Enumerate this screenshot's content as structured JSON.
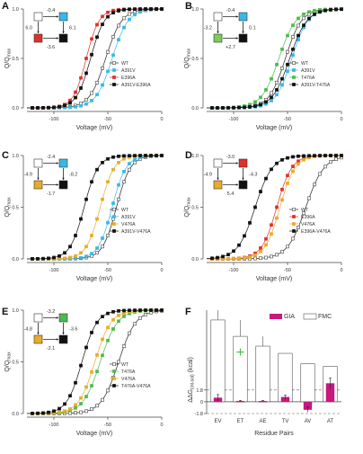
{
  "chart_data": [
    {
      "panel": "A",
      "type": "line",
      "xlabel": "Voltage (mV)",
      "ylabel": "Q/Q",
      "ylabel_sub": "max",
      "xticks": [
        -100,
        -50,
        0
      ],
      "yticks": [
        0.0,
        0.5,
        1.0
      ],
      "xlim": [
        -125,
        0
      ],
      "ylim": [
        0,
        1
      ],
      "legend_position": "lower-right",
      "series": [
        {
          "name": "WT",
          "marker": "open-square",
          "color": "#222222",
          "v_half": -52,
          "slope": 7.5
        },
        {
          "name": "A391V",
          "marker": "filled-square",
          "color": "#39b8e6",
          "v_half": -46,
          "slope": 7.5
        },
        {
          "name": "E396A",
          "marker": "filled-square",
          "color": "#e0302a",
          "v_half": -70,
          "slope": 6.0
        },
        {
          "name": "A391V-E396A",
          "marker": "filled-square",
          "color": "#111111",
          "v_half": -66,
          "slope": 6.5
        }
      ],
      "cycle": {
        "top_edge": "-0.4",
        "bottom_edge": "-3.6",
        "left_edge": "6.0",
        "right_edge": "6.1",
        "colors": {
          "tl": "#ffffff",
          "tr": "#39b8e6",
          "bl": "#e0302a",
          "br": "#111111"
        }
      }
    },
    {
      "panel": "B",
      "type": "line",
      "xlabel": "Voltage (mV)",
      "ylabel": "Q/Q",
      "ylabel_sub": "max",
      "xticks": [
        -100,
        -50,
        0
      ],
      "yticks": [
        0.0,
        0.5,
        1.0
      ],
      "xlim": [
        -125,
        0
      ],
      "ylim": [
        0,
        1
      ],
      "legend_position": "lower-right",
      "series": [
        {
          "name": "WT",
          "marker": "open-square",
          "color": "#222222",
          "v_half": -52,
          "slope": 7.5
        },
        {
          "name": "A391V",
          "marker": "filled-square",
          "color": "#39b8e6",
          "v_half": -46,
          "slope": 7.5
        },
        {
          "name": "T476A",
          "marker": "filled-square",
          "color": "#4dbb4d",
          "v_half": -58,
          "slope": 8.0
        },
        {
          "name": "A391V-T476A",
          "marker": "filled-square",
          "color": "#111111",
          "v_half": -48,
          "slope": 8.0
        }
      ],
      "cycle": {
        "top_edge": "-0.4",
        "bottom_edge": "+2.7",
        "left_edge": "-3.2",
        "right_edge": "0.1",
        "colors": {
          "tl": "#ffffff",
          "tr": "#39b8e6",
          "bl": "#7ecb5b",
          "br": "#111111"
        }
      }
    },
    {
      "panel": "C",
      "type": "line",
      "xlabel": "Voltage (mV)",
      "ylabel": "Q/Q",
      "ylabel_sub": "max",
      "xticks": [
        -100,
        -50,
        0
      ],
      "yticks": [
        0.0,
        0.5,
        1.0
      ],
      "xlim": [
        -125,
        0
      ],
      "ylim": [
        0,
        1
      ],
      "legend_position": "lower-right",
      "series": [
        {
          "name": "WT",
          "marker": "open-square",
          "color": "#222222",
          "v_half": -42,
          "slope": 6.5
        },
        {
          "name": "A391V",
          "marker": "filled-square",
          "color": "#39b8e6",
          "v_half": -46,
          "slope": 6.5
        },
        {
          "name": "V476A",
          "marker": "filled-square",
          "color": "#e8ac28",
          "v_half": -57,
          "slope": 6.5
        },
        {
          "name": "A391V-V476A",
          "marker": "filled-square",
          "color": "#111111",
          "v_half": -72,
          "slope": 6.5
        }
      ],
      "cycle": {
        "top_edge": "-2.4",
        "bottom_edge": "-1.7",
        "left_edge": "-4.9",
        "right_edge": "-8.2",
        "colors": {
          "tl": "#ffffff",
          "tr": "#39b8e6",
          "bl": "#e8ac28",
          "br": "#111111"
        }
      }
    },
    {
      "panel": "D",
      "type": "line",
      "xlabel": "Voltage (mV)",
      "ylabel": "Q/Q",
      "ylabel_sub": "max",
      "xticks": [
        -100,
        -50,
        0
      ],
      "yticks": [
        0.0,
        0.5,
        1.0
      ],
      "xlim": [
        -125,
        0
      ],
      "ylim": [
        0,
        1
      ],
      "legend_position": "lower-right",
      "series": [
        {
          "name": "WT",
          "marker": "open-square",
          "color": "#222222",
          "v_half": -33,
          "slope": 8.5
        },
        {
          "name": "E396A",
          "marker": "filled-square",
          "color": "#e0302a",
          "v_half": -60,
          "slope": 7.0
        },
        {
          "name": "V476A",
          "marker": "filled-square",
          "color": "#e8ac28",
          "v_half": -57,
          "slope": 7.0
        },
        {
          "name": "E396A-V476A",
          "marker": "filled-square",
          "color": "#111111",
          "v_half": -80,
          "slope": 8.0
        }
      ],
      "cycle": {
        "top_edge": "-3.0",
        "bottom_edge": "5.4",
        "left_edge": "-4.9",
        "right_edge": "-4.3",
        "colors": {
          "tl": "#ffffff",
          "tr": "#e0302a",
          "bl": "#e8ac28",
          "br": "#111111"
        }
      }
    },
    {
      "panel": "E",
      "type": "line",
      "xlabel": "Voltage (mV)",
      "ylabel": "Q/Q",
      "ylabel_sub": "max",
      "xticks": [
        -100,
        -50,
        0
      ],
      "yticks": [
        0.0,
        0.5,
        1.0
      ],
      "xlim": [
        -125,
        0
      ],
      "ylim": [
        0,
        1
      ],
      "legend_position": "lower-right",
      "series": [
        {
          "name": "WT",
          "marker": "open-square",
          "color": "#222222",
          "v_half": -40,
          "slope": 8.0
        },
        {
          "name": "T476A",
          "marker": "filled-square",
          "color": "#4dbb4d",
          "v_half": -57,
          "slope": 8.0
        },
        {
          "name": "V476A",
          "marker": "filled-square",
          "color": "#e8ac28",
          "v_half": -62,
          "slope": 7.5
        },
        {
          "name": "T476A-V476A",
          "marker": "filled-square",
          "color": "#111111",
          "v_half": -74,
          "slope": 7.0
        }
      ],
      "cycle": {
        "top_edge": "-3.2",
        "bottom_edge": "-2.1",
        "left_edge": "-4.8",
        "right_edge": "-3.6",
        "colors": {
          "tl": "#ffffff",
          "tr": "#4dbb4d",
          "bl": "#e8ac28",
          "br": "#111111"
        }
      }
    },
    {
      "panel": "F",
      "type": "bar",
      "xlabel": "Residue Pairs",
      "ylabel": "ΔΔG",
      "ylabel_sub": "(int-sol)",
      "ylabel_unit": "(kcal)",
      "categories": [
        "EV",
        "ET",
        "AE",
        "TV",
        "AV",
        "AT"
      ],
      "yticks": [
        "-1.8",
        "0",
        "1.8"
      ],
      "ylim": [
        -1.8,
        14
      ],
      "dashed_lines": [
        1.8,
        -1.8
      ],
      "legend_position": "top-right",
      "series": [
        {
          "name": "GIA",
          "color": "#c8177e",
          "values": [
            0.6,
            0.1,
            0.1,
            0.7,
            -1.2,
            2.8
          ],
          "errors": [
            0.5,
            0.1,
            0.1,
            0.3,
            0.4,
            0.8
          ]
        },
        {
          "name": "FMC",
          "color": "#ffffff",
          "values": [
            12.5,
            10.0,
            8.5,
            7.4,
            5.8,
            5.4
          ],
          "errors": [
            2.0,
            2.5,
            1.5,
            0,
            0,
            0
          ]
        }
      ],
      "extra_marker": {
        "category": "ET",
        "value": 7.6,
        "color": "#4dbb4d",
        "shape": "cross"
      }
    }
  ]
}
